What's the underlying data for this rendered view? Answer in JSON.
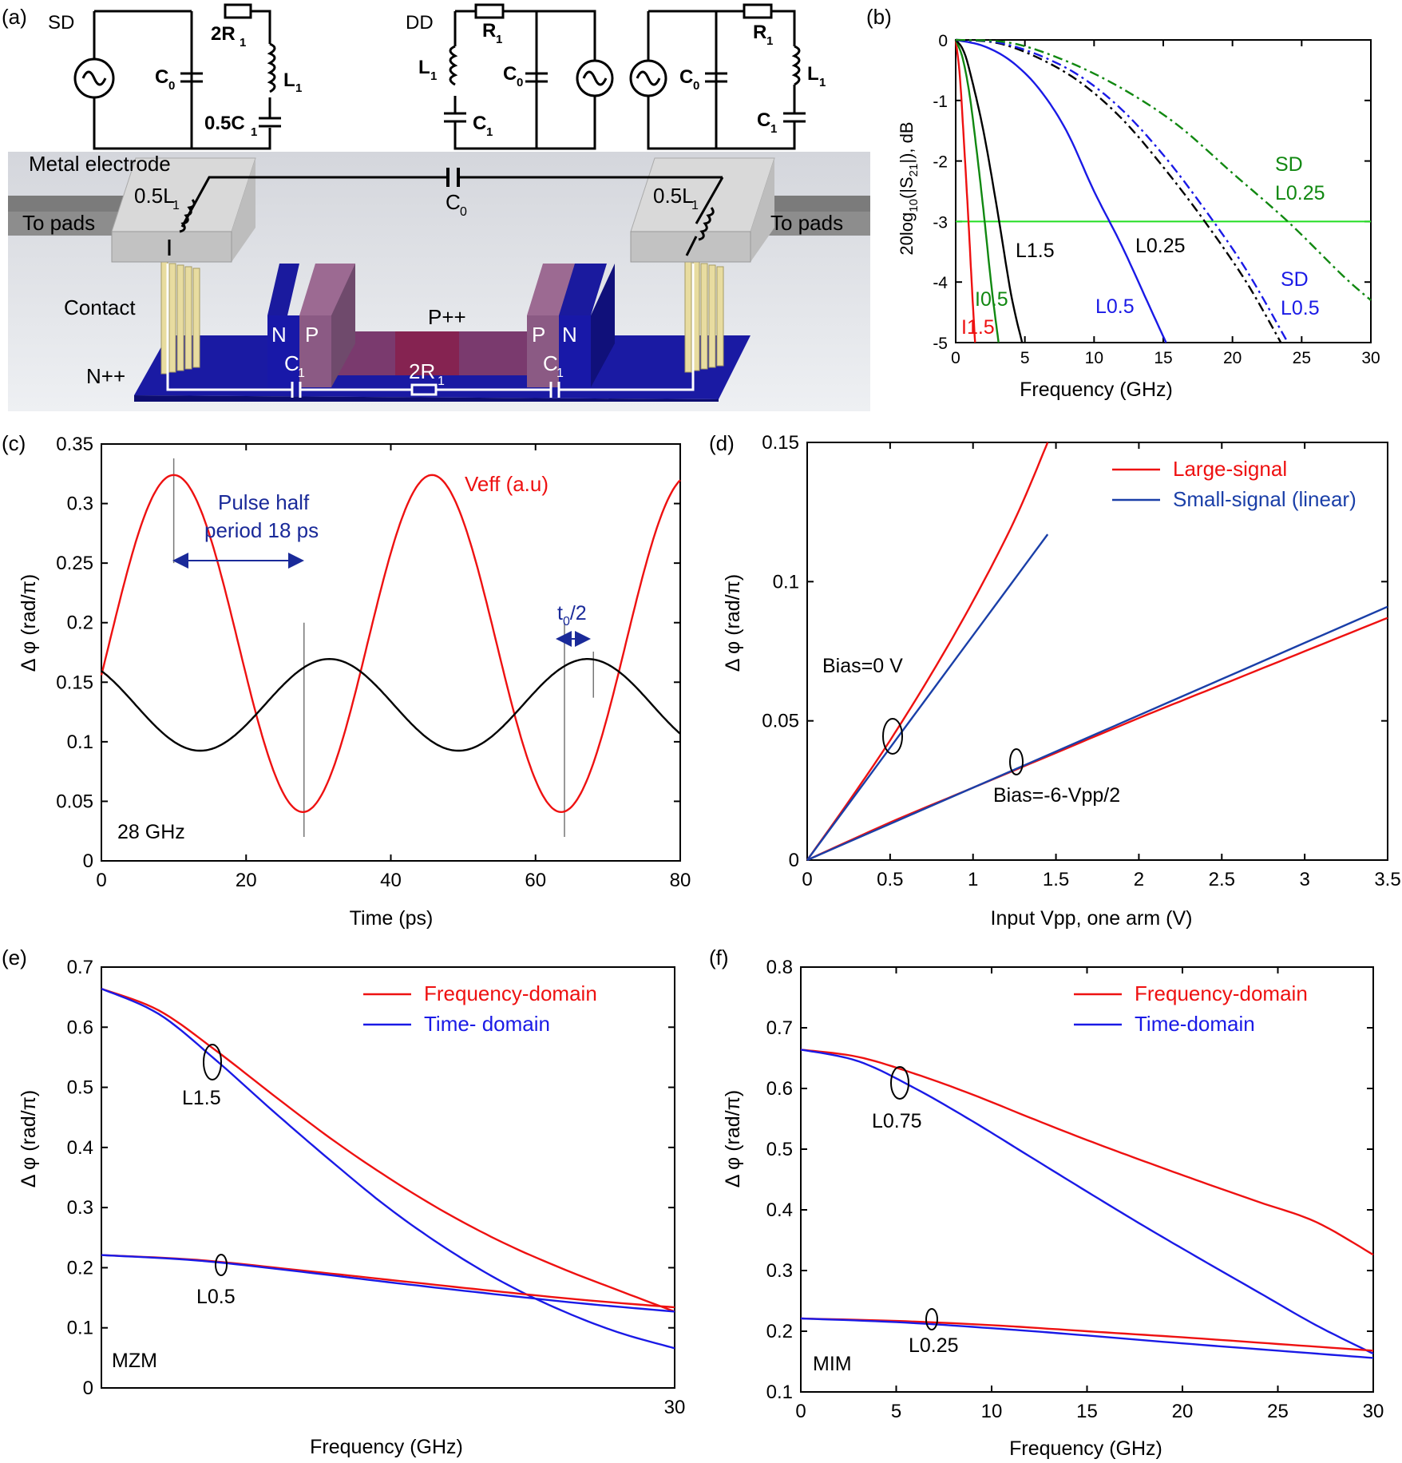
{
  "panels": {
    "a": {
      "label": "(a)",
      "circuit_sd": {
        "title": "SD",
        "c0": "C",
        "c0_sub": "0",
        "r": "2R",
        "r_sub": "1",
        "l": "L",
        "l_sub": "1",
        "c1": "0.5C",
        "c1_sub": "1"
      },
      "circuit_dd": {
        "title": "DD",
        "l": "L",
        "l_sub": "1",
        "r": "R",
        "r_sub": "1",
        "c0": "C",
        "c0_sub": "0",
        "c1": "C",
        "c1_sub": "1"
      },
      "circuit_dd2": {
        "c0": "C",
        "c0_sub": "0",
        "r": "R",
        "r_sub": "1",
        "l": "L",
        "l_sub": "1",
        "c1": "C",
        "c1_sub": "1"
      },
      "device": {
        "metal_electrode": "Metal electrode",
        "to_pads_left": "To pads",
        "to_pads_right": "To pads",
        "inductor_left": "0.5L",
        "inductor_left_sub": "1",
        "inductor_right": "0.5L",
        "inductor_right_sub": "1",
        "cap_top": "C",
        "cap_top_sub": "0",
        "contact": "Contact",
        "npp": "N++",
        "ppp": "P++",
        "n_left": "N",
        "p_left": "P",
        "p_right": "P",
        "n_right": "N",
        "c1_left": "C",
        "c1_left_sub": "1",
        "c1_right": "C",
        "c1_right_sub": "1",
        "r_mid": "2R",
        "r_mid_sub": "1"
      }
    },
    "b": {
      "label": "(b)",
      "ylabel": "20log",
      "ylabel_sub": "10",
      "ylabel_rest": "(|S",
      "ylabel_sub2": "21",
      "ylabel_end": "|), dB",
      "xlabel": "Frequency (GHz)",
      "labels": {
        "l15": "L1.5",
        "l025": "L0.25",
        "l05": "L0.5",
        "i05": "I0.5",
        "i15": "I1.5",
        "sd025_a": "SD",
        "sd025_b": "L0.25",
        "sd05_a": "SD",
        "sd05_b": "L0.5"
      }
    },
    "c": {
      "label": "(c)",
      "ylabel": "Δ φ (rad/π)",
      "xlabel": "Time (ps)",
      "veff": "Veff (a.u)",
      "pulse1": "Pulse half",
      "pulse2": "period 18 ps",
      "t0": "t",
      "t0_sub": "0",
      "t0_rest": "/2",
      "freq": "28 GHz"
    },
    "d": {
      "label": "(d)",
      "ylabel": "Δ φ (rad/π)",
      "xlabel": "Input Vpp, one arm (V)",
      "bias0": "Bias=0 V",
      "bias6": "Bias=-6-Vpp/2"
    },
    "e": {
      "label": "(e)",
      "ylabel": "Δ φ (rad/π)",
      "xlabel": "Frequency (GHz)",
      "l15": "L1.5",
      "l05": "L0.5",
      "tag": "MZM"
    },
    "f": {
      "label": "(f)",
      "ylabel": "Δ φ (rad/π)",
      "xlabel": "Frequency (GHz)",
      "l075": "L0.75",
      "l025": "L0.25",
      "tag": "MIM"
    }
  },
  "chart_data": [
    {
      "id": "b",
      "type": "line",
      "xlabel": "Frequency (GHz)",
      "ylabel": "20log10(|S21|), dB",
      "xlim": [
        0,
        30
      ],
      "ylim": [
        -5,
        0
      ],
      "xticks": [
        0,
        5,
        10,
        15,
        20,
        25,
        30
      ],
      "yticks": [
        0,
        -1,
        -2,
        -3,
        -4,
        -5
      ],
      "hline": {
        "y": -3,
        "color": "#22dd22"
      },
      "series": [
        {
          "name": "I1.5",
          "color": "#ee1111",
          "dash": "solid",
          "x": [
            0,
            0.3,
            0.6,
            0.9,
            1.2,
            1.4
          ],
          "y": [
            0,
            -0.6,
            -1.7,
            -2.9,
            -4.2,
            -5
          ]
        },
        {
          "name": "I0.5",
          "color": "#118811",
          "dash": "solid",
          "x": [
            0,
            0.5,
            1,
            1.5,
            2,
            2.6,
            3.1
          ],
          "y": [
            0,
            -0.3,
            -0.9,
            -1.8,
            -2.8,
            -4.1,
            -5
          ]
        },
        {
          "name": "L1.5",
          "color": "#000000",
          "dash": "solid",
          "x": [
            0,
            0.5,
            1,
            2,
            3,
            4,
            4.8
          ],
          "y": [
            0,
            -0.15,
            -0.5,
            -1.5,
            -2.8,
            -4.2,
            -5
          ]
        },
        {
          "name": "L0.5",
          "color": "#1a1ae6",
          "dash": "solid",
          "x": [
            0,
            2,
            4,
            6,
            8,
            10,
            12,
            14,
            15.2
          ],
          "y": [
            0,
            -0.1,
            -0.35,
            -0.8,
            -1.5,
            -2.5,
            -3.4,
            -4.4,
            -5
          ]
        },
        {
          "name": "L0.25",
          "color": "#000000",
          "dash": "dashdot",
          "x": [
            0,
            3,
            6,
            9,
            12,
            15,
            18,
            21,
            23.5
          ],
          "y": [
            0,
            -0.05,
            -0.3,
            -0.7,
            -1.3,
            -2.1,
            -3.0,
            -4.0,
            -5
          ]
        },
        {
          "name": "SD L0.5",
          "color": "#1a1ae6",
          "dash": "dashdot",
          "x": [
            0,
            3,
            6,
            9,
            12,
            15,
            18,
            21,
            24
          ],
          "y": [
            0,
            -0.04,
            -0.25,
            -0.6,
            -1.15,
            -1.9,
            -2.8,
            -3.8,
            -5
          ]
        },
        {
          "name": "SD L0.25",
          "color": "#118811",
          "dash": "dashdot",
          "x": [
            0,
            4,
            8,
            12,
            16,
            20,
            24,
            28,
            30
          ],
          "y": [
            0,
            -0.05,
            -0.35,
            -0.8,
            -1.4,
            -2.2,
            -3.0,
            -3.9,
            -4.3
          ]
        }
      ]
    },
    {
      "id": "c",
      "type": "line",
      "xlabel": "Time (ps)",
      "ylabel": "Δφ (rad/π)",
      "xlim": [
        0,
        80
      ],
      "ylim": [
        0,
        0.35
      ],
      "xticks": [
        0,
        20,
        40,
        60,
        80
      ],
      "yticks": [
        0,
        0.05,
        0.1,
        0.15,
        0.2,
        0.25,
        0.3,
        0.35
      ],
      "series": [
        {
          "name": "Veff (a.u)",
          "color": "#ee1111",
          "func": "sine",
          "offset": 0.1825,
          "amp": 0.1415,
          "period": 35.7,
          "peak": 10
        },
        {
          "name": "",
          "color": "#000000",
          "func": "sine",
          "offset": 0.131,
          "amp": 0.0385,
          "period": 35.7,
          "peak": 31.5
        }
      ],
      "vlines": [
        10,
        28,
        64,
        68
      ]
    },
    {
      "id": "d",
      "type": "line",
      "xlabel": "Input Vpp, one arm (V)",
      "ylabel": "Δφ (rad/π)",
      "xlim": [
        0,
        3.5
      ],
      "ylim": [
        0,
        0.15
      ],
      "xticks": [
        0,
        0.5,
        1,
        1.5,
        2,
        2.5,
        3,
        3.5
      ],
      "yticks": [
        0,
        0.05,
        0.1,
        0.15
      ],
      "legend": [
        "Large-signal",
        "Small-signal (linear)"
      ],
      "legend_position": "top-right",
      "series": [
        {
          "name": "Large-signal",
          "color": "#ee1111",
          "x": [
            0,
            0.25,
            0.5,
            0.75,
            1,
            1.25,
            1.45
          ],
          "y": [
            0,
            0.021,
            0.043,
            0.067,
            0.093,
            0.122,
            0.15
          ]
        },
        {
          "name": "Small-signal (linear)",
          "color": "#1a3fa8",
          "x": [
            0,
            1.45
          ],
          "y": [
            0,
            0.117
          ]
        },
        {
          "name": "Large-signal",
          "color": "#ee1111",
          "x": [
            0,
            0.5,
            1,
            1.5,
            2,
            2.5,
            3,
            3.5
          ],
          "y": [
            0,
            0.0135,
            0.026,
            0.0385,
            0.051,
            0.063,
            0.075,
            0.087
          ]
        },
        {
          "name": "Small-signal (linear)",
          "color": "#1a3fa8",
          "x": [
            0,
            3.5
          ],
          "y": [
            0,
            0.091
          ]
        }
      ]
    },
    {
      "id": "e",
      "type": "line",
      "xlabel": "Frequency (GHz)",
      "ylabel": "Δφ (rad/π)",
      "xlim": [
        0,
        30
      ],
      "ylim": [
        0,
        0.7
      ],
      "xticks": [
        30
      ],
      "yticks": [
        0,
        0.1,
        0.2,
        0.3,
        0.4,
        0.5,
        0.6,
        0.7
      ],
      "legend": [
        "Frequency-domain",
        "Time- domain"
      ],
      "legend_position": "top-right",
      "series": [
        {
          "name": "Frequency-domain",
          "color": "#ee1111",
          "x": [
            0,
            3,
            6,
            9,
            12,
            15,
            18,
            21,
            24,
            27,
            30
          ],
          "y": [
            0.664,
            0.628,
            0.561,
            0.487,
            0.415,
            0.35,
            0.292,
            0.242,
            0.2,
            0.163,
            0.127
          ]
        },
        {
          "name": "Time- domain",
          "color": "#1a1ae6",
          "x": [
            0,
            3,
            6,
            9,
            12,
            15,
            18,
            21,
            24,
            27,
            30
          ],
          "y": [
            0.664,
            0.622,
            0.545,
            0.46,
            0.378,
            0.3,
            0.233,
            0.176,
            0.13,
            0.093,
            0.066
          ]
        },
        {
          "name": "Frequency-domain",
          "color": "#ee1111",
          "x": [
            0,
            5,
            10,
            15,
            20,
            25,
            30
          ],
          "y": [
            0.221,
            0.213,
            0.197,
            0.18,
            0.163,
            0.147,
            0.134
          ]
        },
        {
          "name": "Time- domain",
          "color": "#1a1ae6",
          "x": [
            0,
            5,
            10,
            15,
            20,
            25,
            30
          ],
          "y": [
            0.221,
            0.212,
            0.195,
            0.176,
            0.158,
            0.141,
            0.127
          ]
        }
      ]
    },
    {
      "id": "f",
      "type": "line",
      "xlabel": "Frequency (GHz)",
      "ylabel": "Δφ (rad/π)",
      "xlim": [
        0,
        30
      ],
      "ylim": [
        0.1,
        0.8
      ],
      "xticks": [
        0,
        5,
        10,
        15,
        20,
        25,
        30
      ],
      "yticks": [
        0.1,
        0.2,
        0.3,
        0.4,
        0.5,
        0.6,
        0.7,
        0.8
      ],
      "legend": [
        "Frequency-domain",
        "Time-domain"
      ],
      "legend_position": "top-right",
      "series": [
        {
          "name": "Frequency-domain",
          "color": "#ee1111",
          "x": [
            0,
            3,
            6,
            9,
            12,
            15,
            18,
            21,
            24,
            27,
            30
          ],
          "y": [
            0.664,
            0.652,
            0.624,
            0.59,
            0.552,
            0.515,
            0.48,
            0.446,
            0.413,
            0.38,
            0.326
          ]
        },
        {
          "name": "Time-domain",
          "color": "#1a1ae6",
          "x": [
            0,
            3,
            6,
            9,
            12,
            15,
            18,
            21,
            24,
            27,
            30
          ],
          "y": [
            0.664,
            0.645,
            0.6,
            0.546,
            0.488,
            0.43,
            0.373,
            0.318,
            0.264,
            0.21,
            0.163
          ]
        },
        {
          "name": "Frequency-domain",
          "color": "#ee1111",
          "x": [
            0,
            5,
            10,
            15,
            20,
            25,
            30
          ],
          "y": [
            0.221,
            0.217,
            0.21,
            0.2,
            0.19,
            0.179,
            0.168
          ]
        },
        {
          "name": "Time-domain",
          "color": "#1a1ae6",
          "x": [
            0,
            5,
            10,
            15,
            20,
            25,
            30
          ],
          "y": [
            0.221,
            0.215,
            0.205,
            0.193,
            0.18,
            0.168,
            0.156
          ]
        }
      ]
    }
  ]
}
